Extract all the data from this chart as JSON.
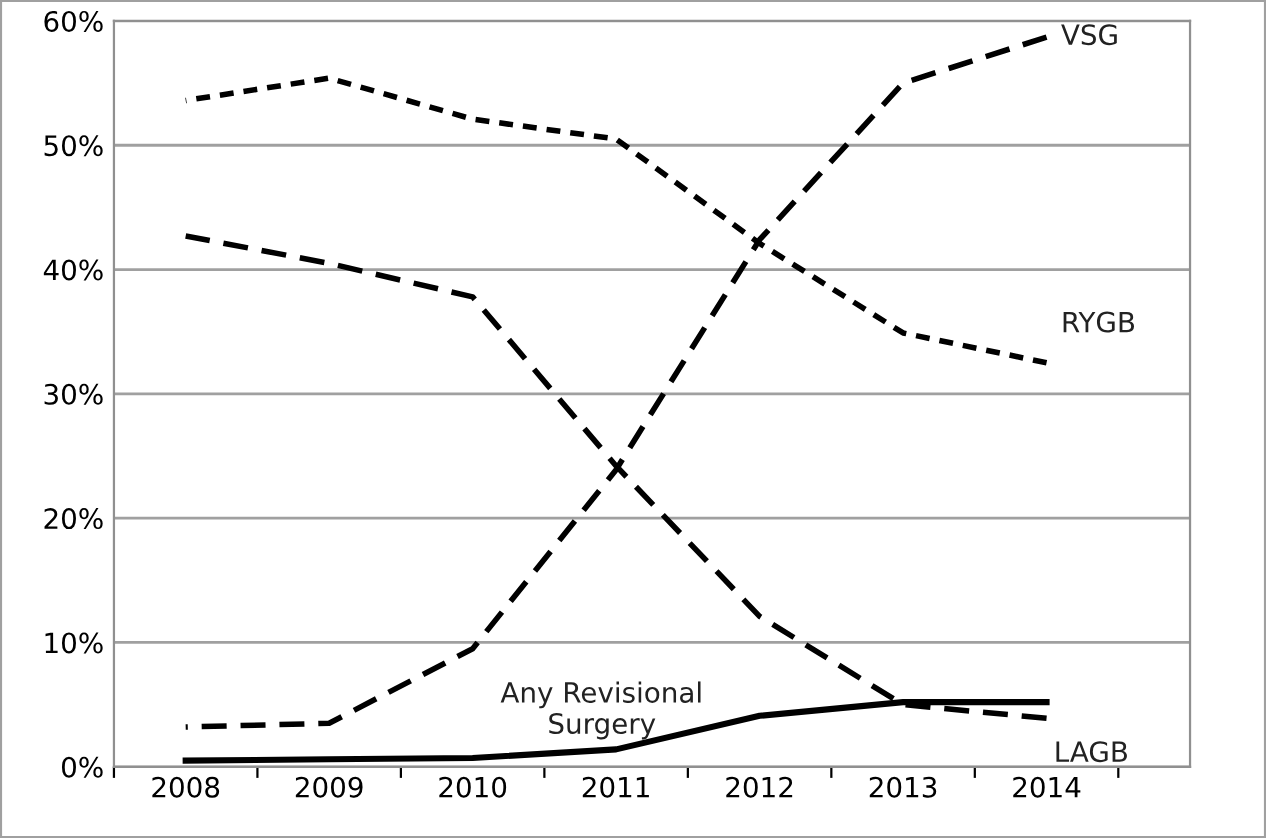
{
  "chart_data": {
    "type": "line",
    "categories": [
      "2008",
      "2009",
      "2010",
      "2011",
      "2012",
      "2013",
      "2014"
    ],
    "series": [
      {
        "name": "RYGB",
        "color": "#000000",
        "line_style": "dotted",
        "values": [
          53.6,
          55.4,
          52.1,
          50.5,
          42.1,
          34.9,
          32.5
        ]
      },
      {
        "name": "LAGB",
        "color": "#000000",
        "line_style": "dashed",
        "values": [
          42.7,
          40.5,
          37.8,
          24.2,
          12.1,
          5.0,
          3.9
        ]
      },
      {
        "name": "VSG",
        "color": "#000000",
        "line_style": "dashed",
        "values": [
          3.2,
          3.5,
          9.5,
          23.9,
          42.4,
          55.0,
          58.7
        ]
      },
      {
        "name": "Any Revisional\nSurgery",
        "color": "#000000",
        "line_style": "solid",
        "values": [
          0.5,
          0.6,
          0.7,
          1.4,
          4.1,
          5.2,
          5.2
        ]
      }
    ],
    "ylim": [
      0,
      60
    ],
    "yticks": [
      {
        "value": 0,
        "label": "0%"
      },
      {
        "value": 10,
        "label": "10%"
      },
      {
        "value": 20,
        "label": "20%"
      },
      {
        "value": 30,
        "label": "30%"
      },
      {
        "value": 40,
        "label": "40%"
      },
      {
        "value": 50,
        "label": "50%"
      },
      {
        "value": 60,
        "label": "60%"
      }
    ],
    "grid": "y",
    "legend": false,
    "marker": "none"
  }
}
